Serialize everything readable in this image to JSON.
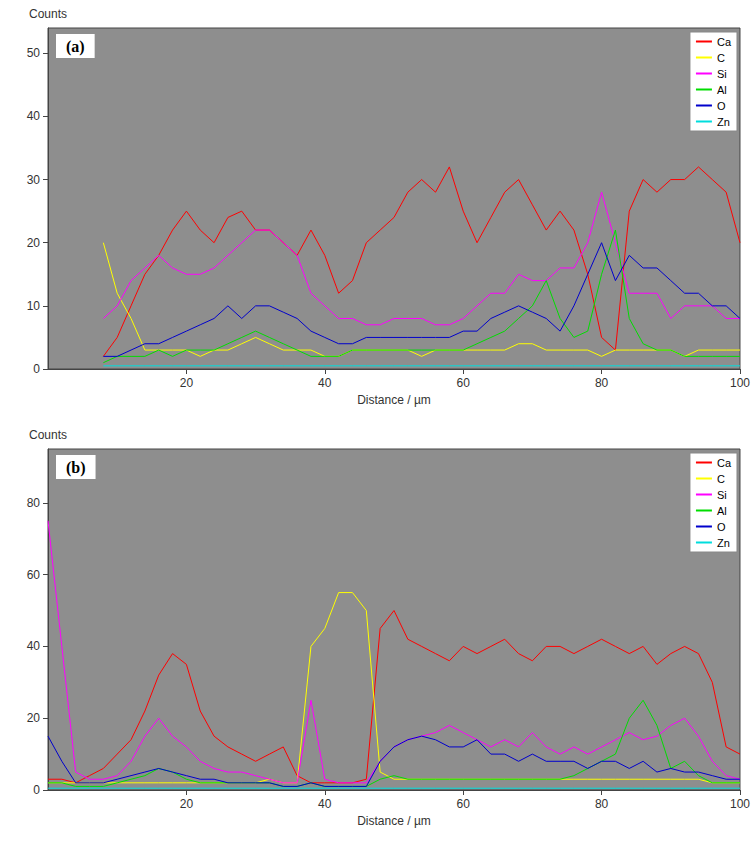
{
  "chart_data": [
    {
      "type": "line",
      "title": "(a)",
      "xlabel": "Distance / µm",
      "ylabel": "Counts",
      "xlim": [
        0,
        100
      ],
      "xticks": [
        20,
        40,
        60,
        80,
        100
      ],
      "ylim": [
        0,
        54
      ],
      "yticks": [
        0,
        10,
        20,
        30,
        40,
        50
      ],
      "grid": false,
      "legend": "top-right",
      "x": [
        0,
        2,
        4,
        6,
        8,
        10,
        12,
        14,
        16,
        18,
        20,
        22,
        24,
        26,
        28,
        30,
        32,
        34,
        36,
        38,
        40,
        42,
        44,
        46,
        48,
        50,
        52,
        54,
        56,
        58,
        60,
        62,
        64,
        66,
        68,
        70,
        72,
        74,
        76,
        78,
        80,
        82,
        84,
        86,
        88,
        90,
        92,
        94,
        96,
        98,
        100
      ],
      "series": [
        {
          "name": "Ca",
          "color": "#ff0000",
          "values": [
            null,
            null,
            null,
            null,
            2,
            5,
            10,
            15,
            18,
            22,
            25,
            22,
            20,
            24,
            25,
            22,
            22,
            20,
            18,
            22,
            18,
            12,
            14,
            20,
            22,
            24,
            28,
            30,
            28,
            32,
            25,
            20,
            24,
            28,
            30,
            26,
            22,
            25,
            22,
            15,
            5,
            3,
            25,
            30,
            28,
            30,
            30,
            32,
            30,
            28,
            20
          ]
        },
        {
          "name": "C",
          "color": "#ffff00",
          "values": [
            null,
            null,
            null,
            null,
            20,
            12,
            8,
            3,
            3,
            3,
            3,
            2,
            3,
            3,
            4,
            5,
            4,
            3,
            3,
            3,
            2,
            2,
            3,
            3,
            3,
            3,
            3,
            2,
            3,
            3,
            3,
            3,
            3,
            3,
            4,
            4,
            3,
            3,
            3,
            3,
            2,
            3,
            3,
            3,
            3,
            3,
            2,
            3,
            3,
            3,
            3
          ]
        },
        {
          "name": "Si",
          "color": "#ff00ff",
          "values": [
            null,
            null,
            null,
            null,
            8,
            10,
            14,
            16,
            18,
            16,
            15,
            15,
            16,
            18,
            20,
            22,
            22,
            20,
            18,
            12,
            10,
            8,
            8,
            7,
            7,
            8,
            8,
            8,
            7,
            7,
            8,
            10,
            12,
            12,
            15,
            14,
            14,
            16,
            16,
            20,
            28,
            20,
            12,
            12,
            12,
            8,
            10,
            10,
            10,
            8,
            8
          ]
        },
        {
          "name": "Al",
          "color": "#00dd00",
          "values": [
            null,
            null,
            null,
            null,
            1,
            2,
            2,
            2,
            3,
            2,
            3,
            3,
            3,
            4,
            5,
            6,
            5,
            4,
            3,
            2,
            2,
            2,
            3,
            3,
            3,
            3,
            3,
            3,
            3,
            3,
            3,
            4,
            5,
            6,
            8,
            10,
            14,
            8,
            5,
            6,
            15,
            22,
            8,
            4,
            3,
            3,
            2,
            2,
            2,
            2,
            2
          ]
        },
        {
          "name": "O",
          "color": "#0000cc",
          "values": [
            null,
            null,
            null,
            null,
            2,
            2,
            3,
            4,
            4,
            5,
            6,
            7,
            8,
            10,
            8,
            10,
            10,
            9,
            8,
            6,
            5,
            4,
            4,
            5,
            5,
            5,
            5,
            5,
            5,
            5,
            6,
            6,
            8,
            9,
            10,
            9,
            8,
            6,
            10,
            15,
            20,
            14,
            18,
            16,
            16,
            14,
            12,
            12,
            10,
            10,
            8
          ]
        },
        {
          "name": "Zn",
          "color": "#00dddd",
          "values": [
            null,
            null,
            null,
            null,
            0.5,
            0.5,
            0.5,
            0.5,
            0.5,
            0.5,
            0.5,
            0.5,
            0.5,
            0.5,
            0.5,
            0.5,
            0.5,
            0.5,
            0.5,
            0.5,
            0.5,
            0.5,
            0.5,
            0.5,
            0.5,
            0.5,
            0.5,
            0.5,
            0.5,
            0.5,
            0.5,
            0.5,
            0.5,
            0.5,
            0.5,
            0.5,
            0.5,
            0.5,
            0.5,
            0.5,
            0.5,
            0.5,
            0.5,
            0.5,
            0.5,
            0.5,
            0.5,
            0.5,
            0.5,
            0.5,
            0.5
          ]
        }
      ]
    },
    {
      "type": "line",
      "title": "(b)",
      "xlabel": "Distance / µm",
      "ylabel": "Counts",
      "xlim": [
        0,
        100
      ],
      "xticks": [
        20,
        40,
        60,
        80,
        100
      ],
      "ylim": [
        0,
        95
      ],
      "yticks": [
        0,
        20,
        40,
        60,
        80
      ],
      "grid": false,
      "legend": "top-right",
      "x": [
        0,
        2,
        4,
        6,
        8,
        10,
        12,
        14,
        16,
        18,
        20,
        22,
        24,
        26,
        28,
        30,
        32,
        34,
        36,
        38,
        40,
        42,
        44,
        46,
        48,
        50,
        52,
        54,
        56,
        58,
        60,
        62,
        64,
        66,
        68,
        70,
        72,
        74,
        76,
        78,
        80,
        82,
        84,
        86,
        88,
        90,
        92,
        94,
        96,
        98,
        100
      ],
      "series": [
        {
          "name": "Ca",
          "color": "#ff0000",
          "values": [
            3,
            3,
            2,
            4,
            6,
            10,
            14,
            22,
            32,
            38,
            35,
            22,
            15,
            12,
            10,
            8,
            10,
            12,
            4,
            2,
            2,
            2,
            2,
            3,
            45,
            50,
            42,
            40,
            38,
            36,
            40,
            38,
            40,
            42,
            38,
            36,
            40,
            40,
            38,
            40,
            42,
            40,
            38,
            40,
            35,
            38,
            40,
            38,
            30,
            12,
            10
          ]
        },
        {
          "name": "C",
          "color": "#ffff00",
          "values": [
            2,
            2,
            2,
            2,
            2,
            2,
            2,
            2,
            2,
            2,
            2,
            2,
            2,
            2,
            2,
            2,
            3,
            2,
            2,
            40,
            45,
            55,
            55,
            50,
            5,
            3,
            3,
            3,
            3,
            3,
            3,
            3,
            3,
            3,
            3,
            3,
            3,
            3,
            3,
            3,
            3,
            3,
            3,
            3,
            3,
            3,
            3,
            3,
            2,
            2,
            2
          ]
        },
        {
          "name": "Si",
          "color": "#ff00ff",
          "values": [
            75,
            40,
            5,
            3,
            3,
            4,
            8,
            15,
            20,
            15,
            12,
            8,
            6,
            5,
            5,
            4,
            3,
            2,
            2,
            25,
            3,
            2,
            2,
            2,
            8,
            12,
            14,
            15,
            16,
            18,
            16,
            14,
            12,
            14,
            12,
            16,
            12,
            10,
            12,
            10,
            12,
            14,
            16,
            14,
            15,
            18,
            20,
            15,
            8,
            4,
            3
          ]
        },
        {
          "name": "Al",
          "color": "#00dd00",
          "values": [
            2,
            2,
            1,
            1,
            1,
            2,
            3,
            4,
            6,
            5,
            3,
            2,
            2,
            2,
            2,
            2,
            2,
            1,
            1,
            2,
            1,
            1,
            1,
            1,
            3,
            4,
            3,
            3,
            3,
            3,
            3,
            3,
            3,
            3,
            3,
            3,
            3,
            3,
            4,
            6,
            8,
            10,
            20,
            25,
            18,
            6,
            8,
            4,
            2,
            2,
            2
          ]
        },
        {
          "name": "O",
          "color": "#0000cc",
          "values": [
            15,
            8,
            2,
            2,
            2,
            3,
            4,
            5,
            6,
            5,
            4,
            3,
            3,
            2,
            2,
            2,
            2,
            1,
            1,
            2,
            1,
            1,
            1,
            1,
            8,
            12,
            14,
            15,
            14,
            12,
            12,
            14,
            10,
            10,
            8,
            10,
            8,
            8,
            8,
            6,
            8,
            8,
            6,
            8,
            5,
            6,
            5,
            5,
            4,
            3,
            3
          ]
        },
        {
          "name": "Zn",
          "color": "#00dddd",
          "values": [
            0.5,
            0.5,
            0.5,
            0.5,
            0.5,
            0.5,
            0.5,
            0.5,
            0.5,
            0.5,
            0.5,
            0.5,
            0.5,
            0.5,
            0.5,
            0.5,
            0.5,
            0.5,
            0.5,
            0.5,
            0.5,
            0.5,
            0.5,
            0.5,
            0.5,
            0.5,
            0.5,
            0.5,
            0.5,
            0.5,
            0.5,
            0.5,
            0.5,
            0.5,
            0.5,
            0.5,
            0.5,
            0.5,
            0.5,
            0.5,
            0.5,
            0.5,
            0.5,
            0.5,
            0.5,
            0.5,
            0.5,
            0.5,
            0.5,
            0.5,
            0.5
          ]
        }
      ]
    }
  ]
}
